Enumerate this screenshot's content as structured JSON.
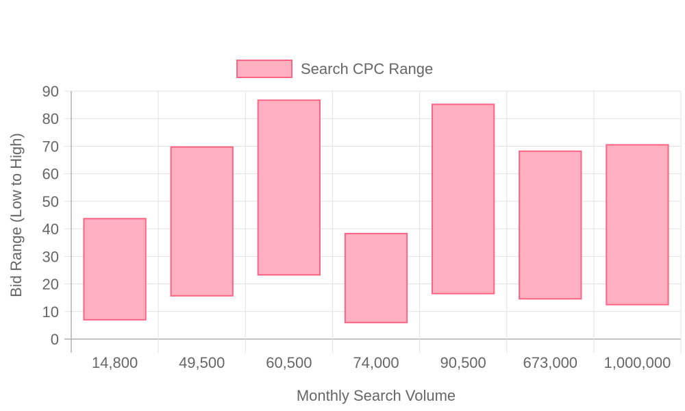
{
  "chart_data": {
    "type": "bar",
    "subtype": "floating-range",
    "categories": [
      "14,800",
      "49,500",
      "60,500",
      "74,000",
      "90,500",
      "673,000",
      "1,000,000"
    ],
    "series": [
      {
        "name": "Search CPC Range",
        "ranges": [
          [
            7,
            43.7
          ],
          [
            15.7,
            69.7
          ],
          [
            23.3,
            86.7
          ],
          [
            6,
            38.3
          ],
          [
            16.5,
            85.2
          ],
          [
            14.6,
            68.2
          ],
          [
            12.5,
            70.5
          ]
        ],
        "fill": "#ffb1c1",
        "border": "#ff6384"
      }
    ],
    "xlabel": "Monthly Search Volume",
    "ylabel": "Bid Range (Low to High)",
    "ylim": [
      0,
      90
    ],
    "ytick_step": 10,
    "grid": true,
    "legend_position": "top"
  },
  "colors": {
    "grid": "#e1e1e1",
    "axis": "#b0b0b0",
    "text": "#666666"
  }
}
